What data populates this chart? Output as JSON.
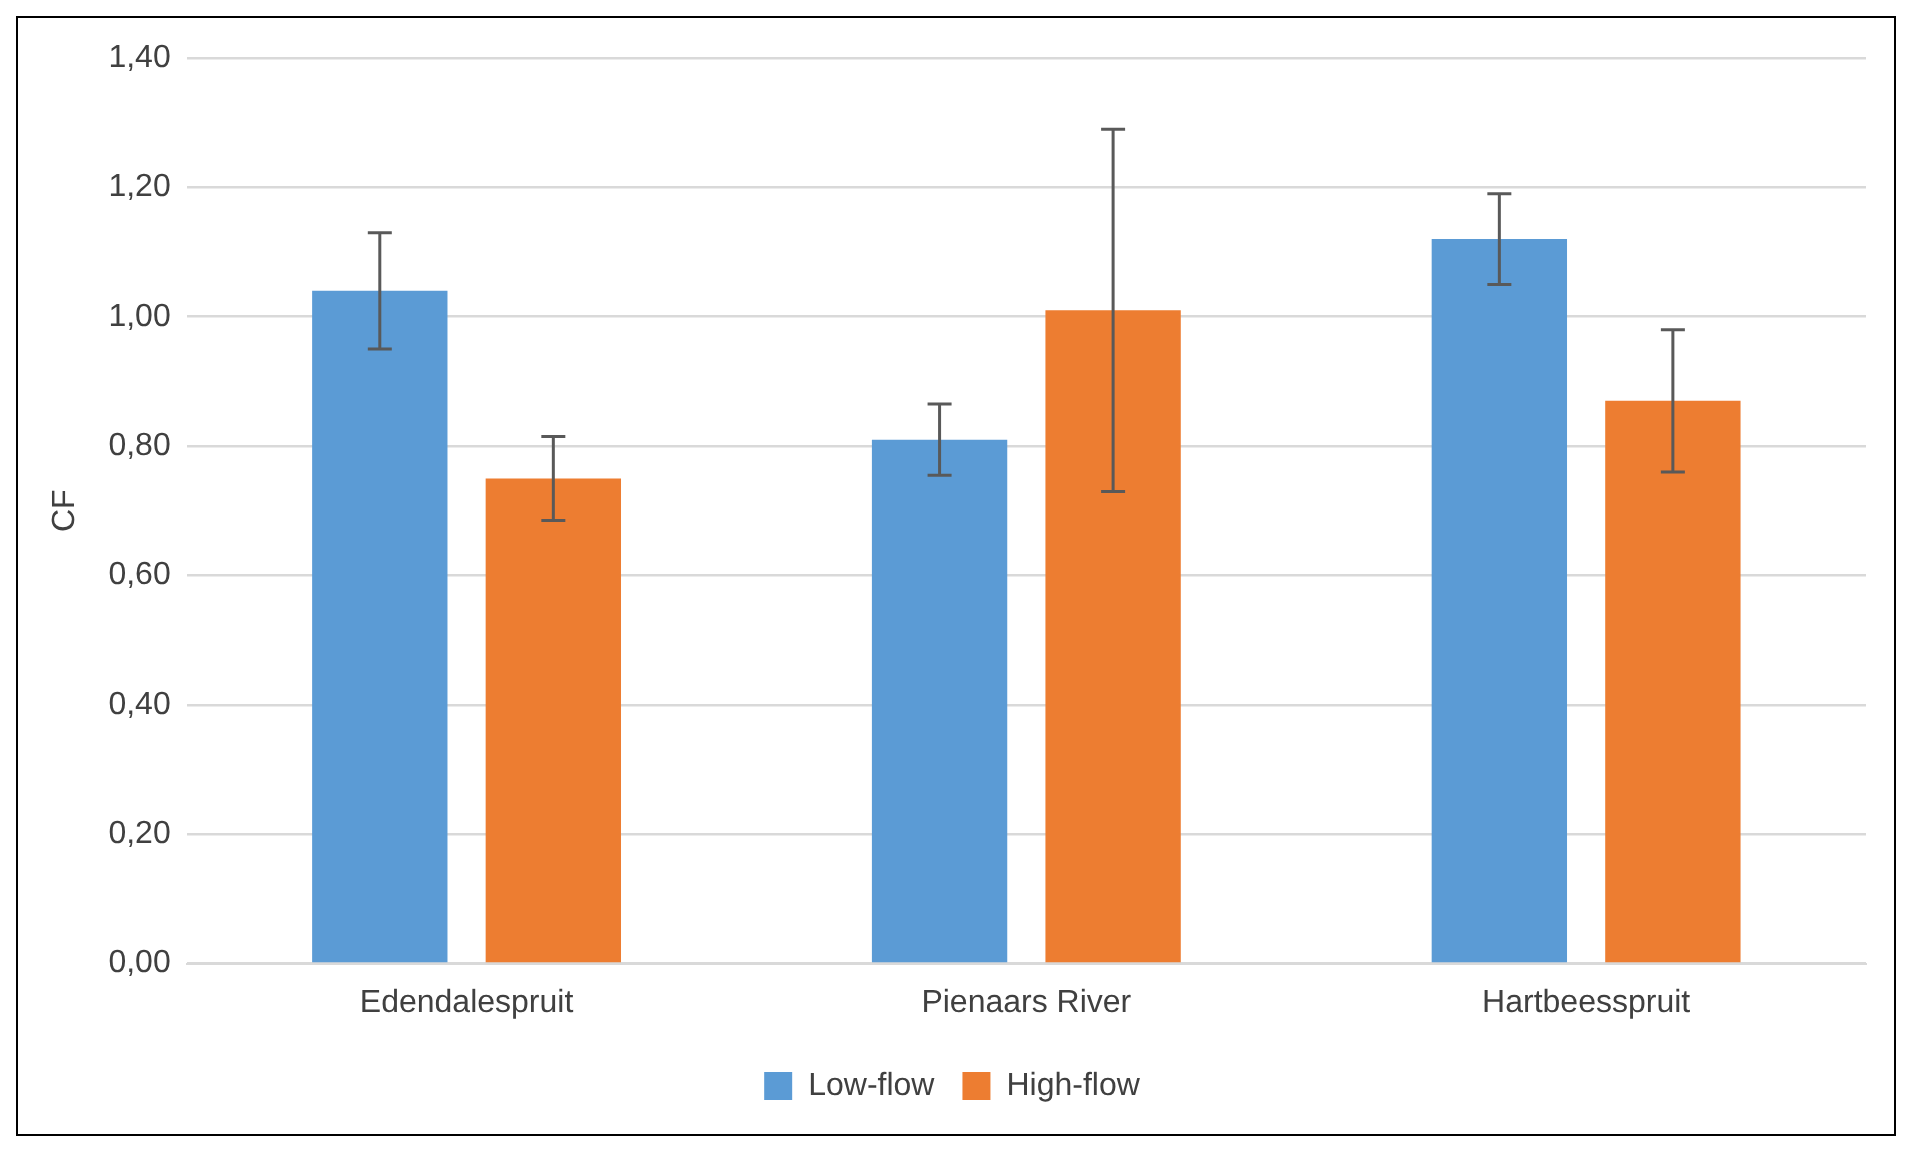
{
  "chart_data": {
    "type": "bar",
    "ylabel": "CF",
    "categories": [
      "Edendalespruit",
      "Pienaars River",
      "Hartbeesspruit"
    ],
    "series": [
      {
        "name": "Low-flow",
        "color": "#5b9bd5",
        "values": [
          1.04,
          0.81,
          1.12
        ],
        "errors": [
          0.09,
          0.055,
          0.07
        ]
      },
      {
        "name": "High-flow",
        "color": "#ed7d31",
        "values": [
          0.75,
          1.01,
          0.87
        ],
        "errors": [
          0.065,
          0.28,
          0.11
        ]
      }
    ],
    "ylim": [
      0,
      1.4
    ],
    "yticks": [
      {
        "value": 0,
        "label": "0,00"
      },
      {
        "value": 0.2,
        "label": "0,20"
      },
      {
        "value": 0.4,
        "label": "0,40"
      },
      {
        "value": 0.6,
        "label": "0,60"
      },
      {
        "value": 0.8,
        "label": "0,80"
      },
      {
        "value": 1,
        "label": "1,00"
      },
      {
        "value": 1.2,
        "label": "1,20"
      },
      {
        "value": 1.4,
        "label": "1,40"
      }
    ],
    "grid": "y",
    "legend": "bottom"
  }
}
